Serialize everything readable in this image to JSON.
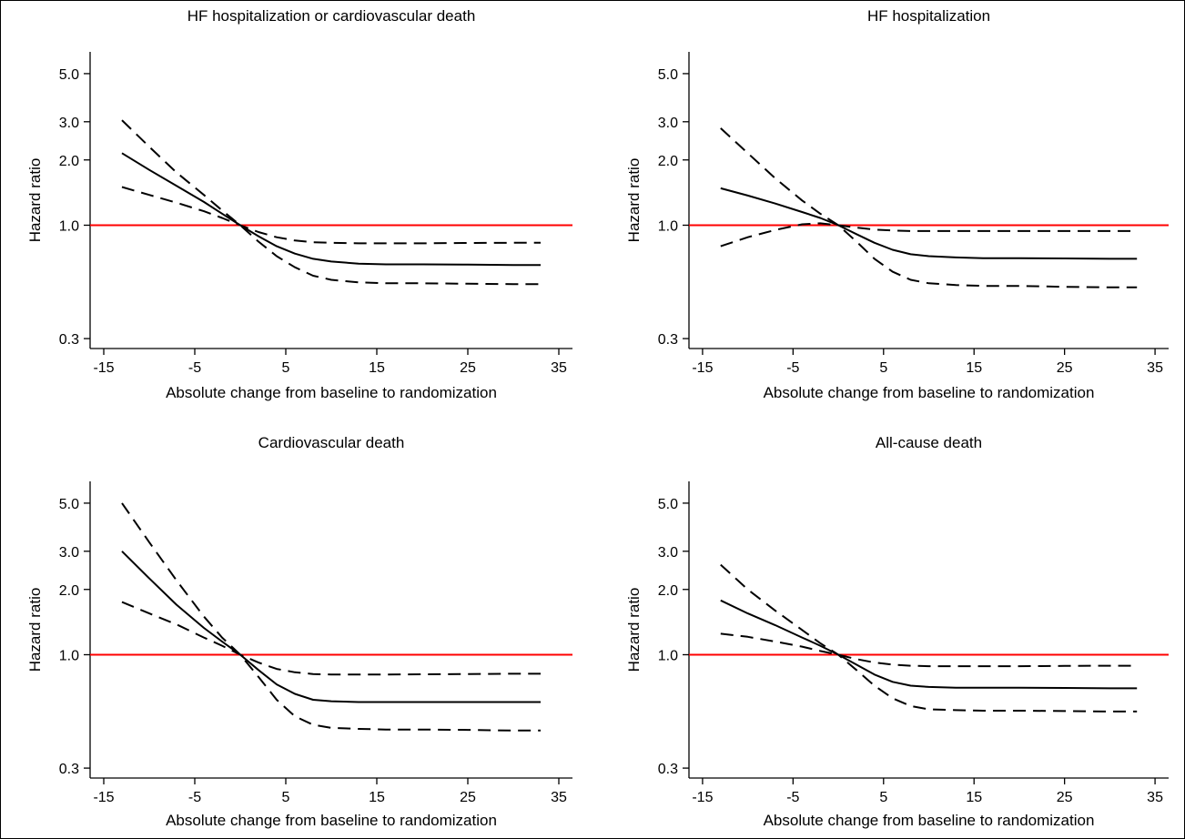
{
  "colors": {
    "reference_line": "#ff0000",
    "curves": "#000000",
    "axes": "#000000"
  },
  "chart_data": [
    {
      "type": "line",
      "title": "HF hospitalization or cardiovascular death",
      "xlabel": "Absolute change from baseline to randomization",
      "ylabel": "Hazard ratio",
      "x_ticks": [
        -15,
        -5,
        5,
        15,
        25,
        35
      ],
      "y_ticks": [
        0.3,
        1.0,
        2.0,
        3.0,
        5.0
      ],
      "y_tick_labels": [
        "0.3",
        "1.0",
        "2.0",
        "3.0",
        "5.0"
      ],
      "xlim": [
        -16.5,
        36.5
      ],
      "ylim": [
        0.27,
        6.3
      ],
      "y_scale": "log",
      "reference_line": 1.0,
      "series": [
        {
          "style": "solid",
          "x": [
            -13,
            -10,
            -7,
            -4,
            -2,
            0,
            2,
            4,
            6,
            8,
            10,
            13,
            16,
            20,
            25,
            30,
            33
          ],
          "y": [
            2.15,
            1.8,
            1.52,
            1.28,
            1.13,
            1.0,
            0.89,
            0.8,
            0.74,
            0.7,
            0.68,
            0.665,
            0.66,
            0.66,
            0.658,
            0.655,
            0.655
          ]
        },
        {
          "style": "dashed",
          "x": [
            -13,
            -10,
            -7,
            -4,
            -2,
            0,
            2,
            4,
            6,
            8,
            10,
            13,
            16,
            20,
            25,
            30,
            33
          ],
          "y": [
            3.05,
            2.3,
            1.75,
            1.38,
            1.17,
            1.0,
            0.84,
            0.72,
            0.64,
            0.585,
            0.56,
            0.545,
            0.54,
            0.54,
            0.537,
            0.535,
            0.535
          ]
        },
        {
          "style": "dashed",
          "x": [
            -13,
            -10,
            -7,
            -4,
            -2,
            0,
            2,
            4,
            6,
            8,
            10,
            13,
            16,
            20,
            25,
            30,
            33
          ],
          "y": [
            1.5,
            1.38,
            1.27,
            1.16,
            1.08,
            1.0,
            0.93,
            0.88,
            0.85,
            0.835,
            0.83,
            0.825,
            0.825,
            0.825,
            0.828,
            0.83,
            0.83
          ]
        }
      ]
    },
    {
      "type": "line",
      "title": "HF hospitalization",
      "xlabel": "Absolute change from baseline to randomization",
      "ylabel": "Hazard ratio",
      "x_ticks": [
        -15,
        -5,
        5,
        15,
        25,
        35
      ],
      "y_ticks": [
        0.3,
        1.0,
        2.0,
        3.0,
        5.0
      ],
      "y_tick_labels": [
        "0.3",
        "1.0",
        "2.0",
        "3.0",
        "5.0"
      ],
      "xlim": [
        -16.5,
        36.5
      ],
      "ylim": [
        0.27,
        6.3
      ],
      "y_scale": "log",
      "reference_line": 1.0,
      "series": [
        {
          "style": "solid",
          "x": [
            -13,
            -10,
            -7,
            -4,
            -2,
            0,
            2,
            4,
            6,
            8,
            10,
            13,
            16,
            20,
            25,
            30,
            33
          ],
          "y": [
            1.48,
            1.37,
            1.26,
            1.15,
            1.08,
            1.0,
            0.91,
            0.83,
            0.77,
            0.735,
            0.72,
            0.71,
            0.705,
            0.705,
            0.703,
            0.7,
            0.7
          ]
        },
        {
          "style": "dashed",
          "x": [
            -13,
            -10,
            -7,
            -4,
            -2,
            0,
            2,
            4,
            6,
            8,
            10,
            13,
            16,
            20,
            25,
            30,
            33
          ],
          "y": [
            2.8,
            2.15,
            1.65,
            1.3,
            1.13,
            1.0,
            0.84,
            0.7,
            0.61,
            0.56,
            0.54,
            0.53,
            0.525,
            0.525,
            0.52,
            0.517,
            0.517
          ]
        },
        {
          "style": "dashed",
          "x": [
            -13,
            -10,
            -7,
            -4,
            -2,
            0,
            2,
            4,
            6,
            8,
            10,
            13,
            16,
            20,
            25,
            30,
            33
          ],
          "y": [
            0.8,
            0.88,
            0.95,
            1.01,
            1.02,
            1.0,
            0.975,
            0.955,
            0.945,
            0.94,
            0.94,
            0.94,
            0.94,
            0.94,
            0.94,
            0.94,
            0.94
          ]
        }
      ]
    },
    {
      "type": "line",
      "title": "Cardiovascular death",
      "xlabel": "Absolute change from baseline to randomization",
      "ylabel": "Hazard ratio",
      "x_ticks": [
        -15,
        -5,
        5,
        15,
        25,
        35
      ],
      "y_ticks": [
        0.3,
        1.0,
        2.0,
        3.0,
        5.0
      ],
      "y_tick_labels": [
        "0.3",
        "1.0",
        "2.0",
        "3.0",
        "5.0"
      ],
      "xlim": [
        -16.5,
        36.5
      ],
      "ylim": [
        0.27,
        6.3
      ],
      "y_scale": "log",
      "reference_line": 1.0,
      "series": [
        {
          "style": "solid",
          "x": [
            -13,
            -10,
            -7,
            -4,
            -2,
            0,
            2,
            4,
            6,
            8,
            10,
            13,
            16,
            20,
            25,
            30,
            33
          ],
          "y": [
            3.0,
            2.25,
            1.7,
            1.33,
            1.15,
            1.0,
            0.85,
            0.73,
            0.66,
            0.62,
            0.61,
            0.605,
            0.605,
            0.605,
            0.605,
            0.605,
            0.605
          ]
        },
        {
          "style": "dashed",
          "x": [
            -13,
            -10,
            -7,
            -4,
            -2,
            0,
            2,
            4,
            6,
            8,
            10,
            13,
            16,
            20,
            25,
            30,
            33
          ],
          "y": [
            5.0,
            3.3,
            2.2,
            1.5,
            1.2,
            1.0,
            0.79,
            0.62,
            0.52,
            0.475,
            0.46,
            0.455,
            0.452,
            0.452,
            0.45,
            0.447,
            0.447
          ]
        },
        {
          "style": "dashed",
          "x": [
            -13,
            -10,
            -7,
            -4,
            -2,
            0,
            2,
            4,
            6,
            8,
            10,
            13,
            16,
            20,
            25,
            30,
            33
          ],
          "y": [
            1.75,
            1.55,
            1.38,
            1.2,
            1.1,
            1.0,
            0.92,
            0.86,
            0.83,
            0.815,
            0.81,
            0.81,
            0.81,
            0.812,
            0.815,
            0.817,
            0.817
          ]
        }
      ]
    },
    {
      "type": "line",
      "title": "All-cause death",
      "xlabel": "Absolute change from baseline to randomization",
      "ylabel": "Hazard ratio",
      "x_ticks": [
        -15,
        -5,
        5,
        15,
        25,
        35
      ],
      "y_ticks": [
        0.3,
        1.0,
        2.0,
        3.0,
        5.0
      ],
      "y_tick_labels": [
        "0.3",
        "1.0",
        "2.0",
        "3.0",
        "5.0"
      ],
      "xlim": [
        -16.5,
        36.5
      ],
      "ylim": [
        0.27,
        6.3
      ],
      "y_scale": "log",
      "reference_line": 1.0,
      "series": [
        {
          "style": "solid",
          "x": [
            -13,
            -10,
            -7,
            -4,
            -2,
            0,
            2,
            4,
            6,
            8,
            10,
            13,
            16,
            20,
            25,
            30,
            33
          ],
          "y": [
            1.78,
            1.55,
            1.37,
            1.2,
            1.1,
            1.0,
            0.9,
            0.81,
            0.75,
            0.72,
            0.71,
            0.705,
            0.705,
            0.705,
            0.703,
            0.7,
            0.7
          ]
        },
        {
          "style": "dashed",
          "x": [
            -13,
            -10,
            -7,
            -4,
            -2,
            0,
            2,
            4,
            6,
            8,
            10,
            13,
            16,
            20,
            25,
            30,
            33
          ],
          "y": [
            2.6,
            2.0,
            1.6,
            1.3,
            1.13,
            1.0,
            0.85,
            0.72,
            0.63,
            0.58,
            0.56,
            0.555,
            0.552,
            0.552,
            0.55,
            0.547,
            0.547
          ]
        },
        {
          "style": "dashed",
          "x": [
            -13,
            -10,
            -7,
            -4,
            -2,
            0,
            2,
            4,
            6,
            8,
            10,
            13,
            16,
            20,
            25,
            30,
            33
          ],
          "y": [
            1.25,
            1.21,
            1.15,
            1.09,
            1.04,
            1.0,
            0.955,
            0.92,
            0.9,
            0.89,
            0.885,
            0.885,
            0.885,
            0.885,
            0.888,
            0.89,
            0.89
          ]
        }
      ]
    }
  ]
}
